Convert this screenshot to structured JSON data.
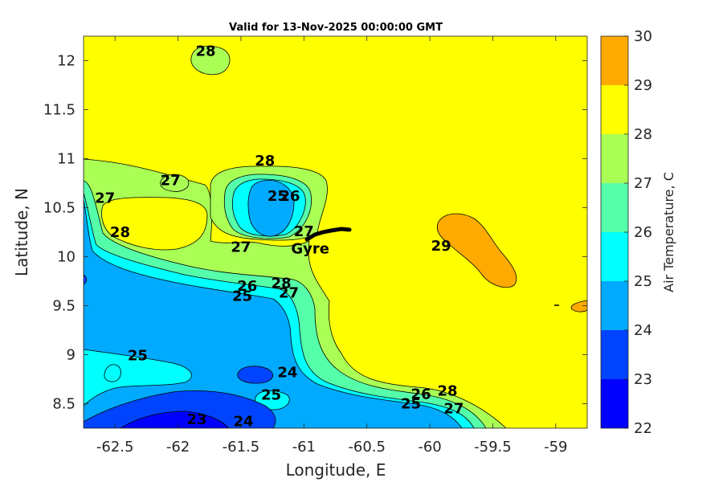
{
  "chart_data": {
    "type": "heatmap",
    "title": "Valid for 13-Nov-2025 00:00:00 GMT",
    "xlabel": "Longitude, E",
    "ylabel": "Latitude, N",
    "xlim": [
      -62.75,
      -58.75
    ],
    "ylim": [
      8.25,
      12.25
    ],
    "xticks": [
      "-62.5",
      "-62",
      "-61.5",
      "-61",
      "-60.5",
      "-60",
      "-59.5",
      "-59"
    ],
    "yticks": [
      "8.5",
      "9",
      "9.5",
      "10",
      "10.5",
      "11",
      "11.5",
      "12"
    ],
    "colorbar": {
      "label": "Air Temperature, C",
      "ticks": [
        "22",
        "23",
        "24",
        "25",
        "26",
        "27",
        "28",
        "29",
        "30"
      ],
      "levels": [
        22,
        23,
        24,
        25,
        26,
        27,
        28,
        29,
        30
      ],
      "colors": [
        "#0000ff",
        "#0044ff",
        "#00aaff",
        "#00ffff",
        "#55ffaa",
        "#aaff55",
        "#ffff00",
        "#ffaa00",
        "#ff5500"
      ]
    },
    "contour_labels": [
      {
        "text": "28",
        "lon": -61.78,
        "lat": 12.1
      },
      {
        "text": "27",
        "lon": -62.06,
        "lat": 10.78
      },
      {
        "text": "28",
        "lon": -61.31,
        "lat": 10.98
      },
      {
        "text": "27",
        "lon": -62.58,
        "lat": 10.6
      },
      {
        "text": "25",
        "lon": -61.21,
        "lat": 10.62
      },
      {
        "text": "26",
        "lon": -61.11,
        "lat": 10.62
      },
      {
        "text": "28",
        "lon": -62.46,
        "lat": 10.25
      },
      {
        "text": "27",
        "lon": -61.0,
        "lat": 10.26
      },
      {
        "text": "27",
        "lon": -61.5,
        "lat": 10.1
      },
      {
        "text": "29",
        "lon": -59.91,
        "lat": 10.11
      },
      {
        "text": "26",
        "lon": -61.45,
        "lat": 9.7
      },
      {
        "text": "28",
        "lon": -61.18,
        "lat": 9.73
      },
      {
        "text": "25",
        "lon": -61.49,
        "lat": 9.6
      },
      {
        "text": "27",
        "lon": -61.12,
        "lat": 9.63
      },
      {
        "text": "25",
        "lon": -62.32,
        "lat": 8.99
      },
      {
        "text": "24",
        "lon": -61.13,
        "lat": 8.82
      },
      {
        "text": "25",
        "lon": -61.26,
        "lat": 8.59
      },
      {
        "text": "26",
        "lon": -60.07,
        "lat": 8.6
      },
      {
        "text": "28",
        "lon": -59.86,
        "lat": 8.63
      },
      {
        "text": "25",
        "lon": -60.15,
        "lat": 8.5
      },
      {
        "text": "27",
        "lon": -59.81,
        "lat": 8.45
      },
      {
        "text": "23",
        "lon": -61.85,
        "lat": 8.34
      },
      {
        "text": "24",
        "lon": -61.48,
        "lat": 8.32
      }
    ],
    "annotations": [
      {
        "text": "Gyre",
        "lon": -60.95,
        "lat": 10.08
      }
    ],
    "grid": false
  }
}
